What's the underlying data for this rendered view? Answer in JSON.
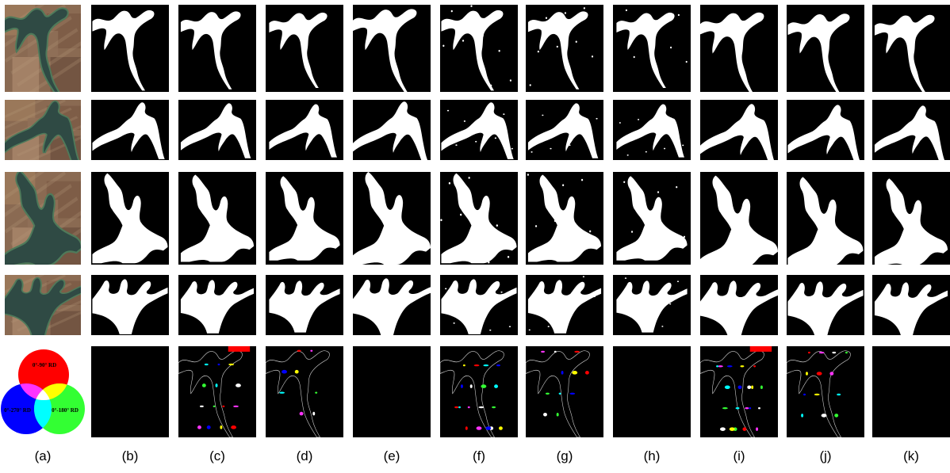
{
  "figure": {
    "column_labels": [
      "(a)",
      "(b)",
      "(c)",
      "(d)",
      "(e)",
      "(f)",
      "(g)",
      "(h)",
      "(i)",
      "(j)",
      "(k)"
    ],
    "legend": {
      "top_label": "0°-90° RD",
      "left_label": "0°-270° RD",
      "right_label": "0°-180° RD",
      "colors": {
        "red": "#ff0000",
        "blue": "#0000ff",
        "green": "#33ff33",
        "magenta": "#ff33ff",
        "yellow": "#ffff00",
        "cyan": "#00ffff",
        "white": "#ffffff"
      }
    },
    "water_mask_color": "#ffffff",
    "background_color": "#000000"
  }
}
